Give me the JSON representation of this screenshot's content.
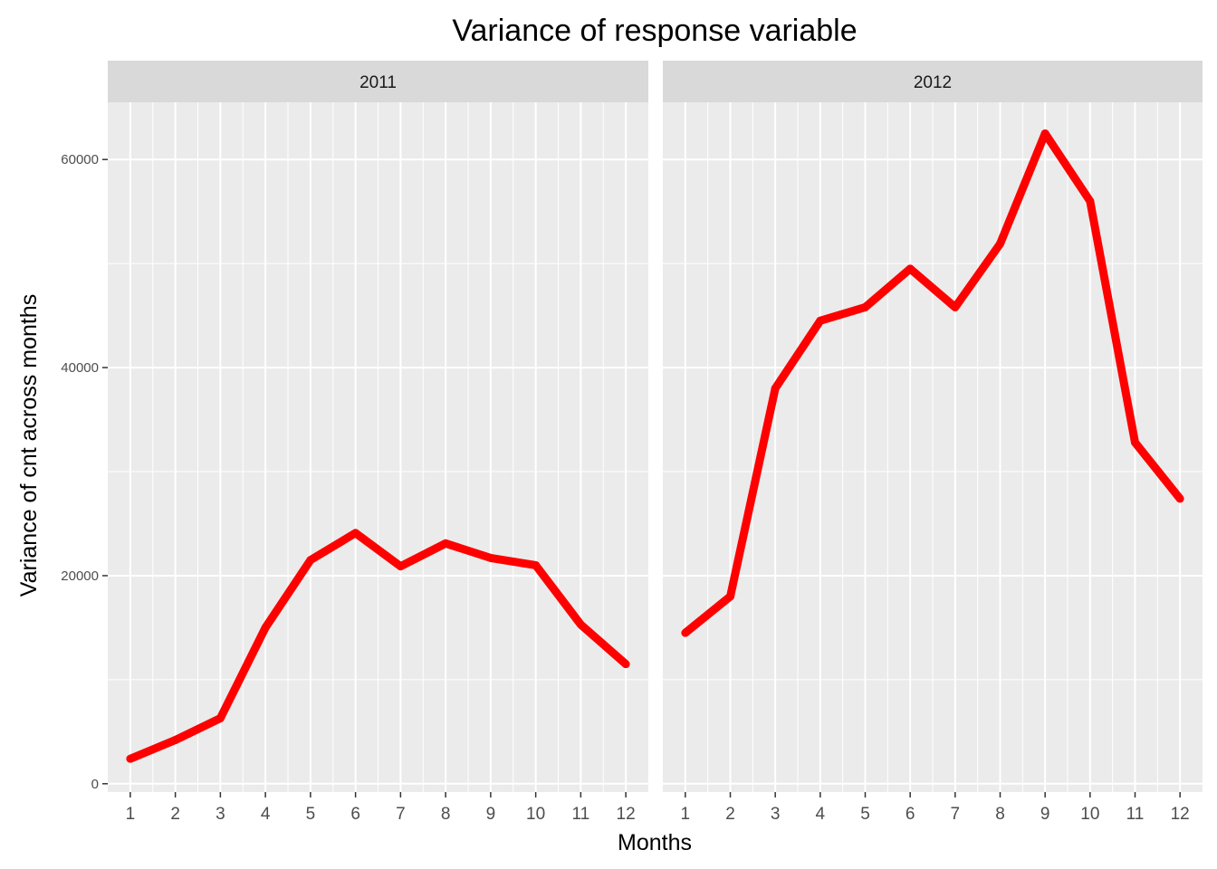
{
  "chart_data": {
    "type": "line",
    "title": "Variance of response variable",
    "xlabel": "Months",
    "ylabel": "Variance of cnt across months",
    "ylim": [
      -800,
      65500
    ],
    "yticks": [
      0,
      20000,
      40000,
      60000
    ],
    "x": [
      1,
      2,
      3,
      4,
      5,
      6,
      7,
      8,
      9,
      10,
      11,
      12
    ],
    "grid": true,
    "facets": [
      {
        "label": "2011",
        "values": [
          2400,
          4200,
          6300,
          15000,
          21500,
          24100,
          20900,
          23100,
          21700,
          21000,
          15300,
          11500
        ]
      },
      {
        "label": "2012",
        "values": [
          14500,
          18000,
          38000,
          44500,
          45800,
          49500,
          45800,
          51900,
          62500,
          56000,
          32800,
          27400
        ]
      }
    ],
    "colors": {
      "line": "#ff0000",
      "panel_bg": "#ebebeb",
      "grid": "#ffffff",
      "strip_bg": "#d9d9d9"
    }
  }
}
